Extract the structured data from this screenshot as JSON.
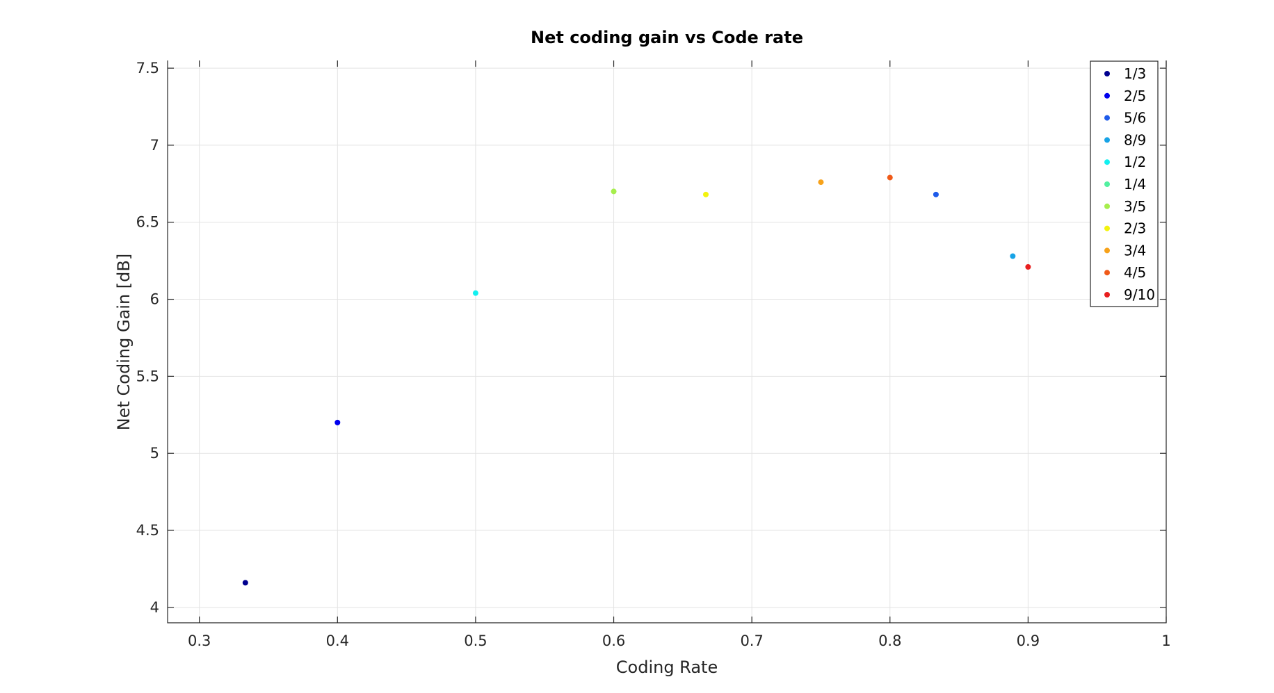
{
  "chart_data": {
    "type": "scatter",
    "title": "Net coding gain vs Code rate",
    "xlabel": "Coding Rate",
    "ylabel": "Net Coding Gain [dB]",
    "xlim": [
      0.277,
      1.0
    ],
    "ylim": [
      3.9,
      7.55
    ],
    "xticks": [
      0.3,
      0.4,
      0.5,
      0.6,
      0.7,
      0.8,
      0.9,
      1
    ],
    "xtick_labels": [
      "0.3",
      "0.4",
      "0.5",
      "0.6",
      "0.7",
      "0.8",
      "0.9",
      "1"
    ],
    "yticks": [
      4,
      4.5,
      5,
      5.5,
      6,
      6.5,
      7,
      7.5
    ],
    "ytick_labels": [
      "4",
      "4.5",
      "5",
      "5.5",
      "6",
      "6.5",
      "7",
      "7.5"
    ],
    "grid": true,
    "legend_position": "top-right",
    "series": [
      {
        "name": "1/3",
        "color": "#00008f",
        "x": 0.3333,
        "y": 4.16
      },
      {
        "name": "2/5",
        "color": "#0000ee",
        "x": 0.4,
        "y": 5.2
      },
      {
        "name": "5/6",
        "color": "#1e5bea",
        "x": 0.8333,
        "y": 6.68
      },
      {
        "name": "8/9",
        "color": "#17a3e6",
        "x": 0.8889,
        "y": 6.28
      },
      {
        "name": "1/2",
        "color": "#12f0f0",
        "x": 0.5,
        "y": 6.04
      },
      {
        "name": "1/4",
        "color": "#52f0a0",
        "x": null,
        "y": null
      },
      {
        "name": "3/5",
        "color": "#a6ee4c",
        "x": 0.6,
        "y": 6.7
      },
      {
        "name": "2/3",
        "color": "#f3f30e",
        "x": 0.6667,
        "y": 6.68
      },
      {
        "name": "3/4",
        "color": "#f7a21a",
        "x": 0.75,
        "y": 6.76
      },
      {
        "name": "4/5",
        "color": "#f05a18",
        "x": 0.8,
        "y": 6.79
      },
      {
        "name": "9/10",
        "color": "#e81e1e",
        "x": 0.9,
        "y": 6.21
      }
    ]
  }
}
